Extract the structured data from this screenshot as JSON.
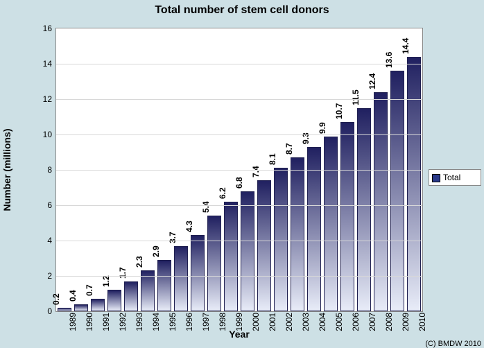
{
  "chart": {
    "type": "bar",
    "title": "Total number of stem cell donors",
    "title_fontsize": 16,
    "xlabel": "Year",
    "ylabel": "Number (millions)",
    "axis_label_fontsize": 14,
    "tick_fontsize": 12,
    "value_label_fontsize": 12,
    "categories": [
      "1989",
      "1990",
      "1991",
      "1992",
      "1993",
      "1994",
      "1995",
      "1996",
      "1997",
      "1998",
      "1999",
      "2000",
      "2001",
      "2002",
      "2003",
      "2004",
      "2005",
      "2006",
      "2007",
      "2008",
      "2009",
      "2010"
    ],
    "values": [
      0.2,
      0.4,
      0.7,
      1.2,
      1.7,
      2.3,
      2.9,
      3.7,
      4.3,
      5.4,
      6.2,
      6.8,
      7.4,
      8.1,
      8.7,
      9.3,
      9.9,
      10.7,
      11.5,
      12.4,
      13.6,
      14.4
    ],
    "value_labels": [
      "0.2",
      "0.4",
      "0.7",
      "1.2",
      "1.7",
      "2.3",
      "2.9",
      "3.7",
      "4.3",
      "5.4",
      "6.2",
      "6.8",
      "7.4",
      "8.1",
      "8.7",
      "9.3",
      "9.9",
      "10.7",
      "11.5",
      "12.4",
      "13.6",
      "14.4"
    ],
    "ylim": [
      0,
      16
    ],
    "ytick_step": 2,
    "yticks": [
      0,
      2,
      4,
      6,
      8,
      10,
      12,
      14,
      16
    ],
    "bar_gradient_top": "#202060",
    "bar_gradient_bottom": "#e8ecf8",
    "bar_border_color": "#202050",
    "bar_width_ratio": 0.85,
    "outer_background": "#cde0e5",
    "plot_background": "#ffffff",
    "grid_color": "#d8d8d8",
    "plot_border_color": "#888888",
    "legend": {
      "swatch_color": "#2a3a8a",
      "label": "Total"
    }
  },
  "copyright_text": "(C) BMDW 2010"
}
